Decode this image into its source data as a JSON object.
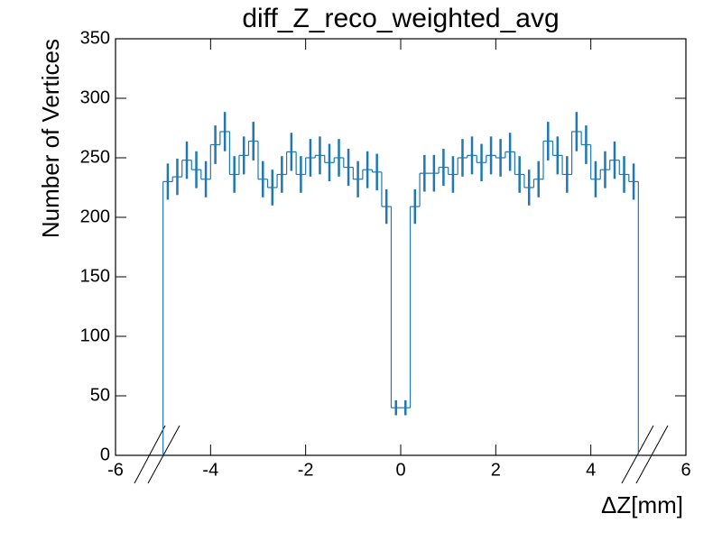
{
  "chart_data": {
    "type": "histogram",
    "title": "diff_Z_reco_weighted_avg",
    "x_label": "ΔZ[mm]",
    "y_label": "Number of Vertices",
    "color": "#1f77b4",
    "bins": [
      -5,
      -4.8,
      -4.6,
      -4.4,
      -4.2,
      -4,
      -3.8,
      -3.6,
      -3.4,
      -3.2,
      -3,
      -2.8,
      -2.6,
      -2.4,
      -2.2,
      -2,
      -1.8,
      -1.6,
      -1.4,
      -1.2,
      -1,
      -0.8,
      -0.6,
      -0.4,
      -0.2,
      0,
      0.2,
      0.4,
      0.6,
      0.8,
      1,
      1.2,
      1.4,
      1.6,
      1.8,
      2,
      2.2,
      2.4,
      2.6,
      2.8,
      3,
      3.2,
      3.4,
      3.6,
      3.8,
      4,
      4.2,
      4.4,
      4.6,
      4.8,
      5
    ],
    "values": [
      230,
      234,
      248,
      240,
      232,
      261,
      272,
      236,
      252,
      264,
      232,
      225,
      236,
      255,
      236,
      250,
      252,
      246,
      250,
      242,
      232,
      240,
      238,
      209,
      40,
      40,
      209,
      237,
      237,
      242,
      236,
      250,
      252,
      246,
      252,
      250,
      255,
      236,
      225,
      232,
      264,
      252,
      236,
      272,
      261,
      232,
      240,
      248,
      236,
      230
    ],
    "errors": [
      15.2,
      15.3,
      15.7,
      15.5,
      15.2,
      16.2,
      16.5,
      15.4,
      15.9,
      16.2,
      15.2,
      15,
      15.4,
      16,
      15.4,
      15.8,
      15.9,
      15.7,
      15.8,
      15.6,
      15.2,
      15.5,
      15.4,
      14.5,
      6.3,
      6.3,
      14.5,
      15.4,
      15.4,
      15.6,
      15.4,
      15.8,
      15.9,
      15.7,
      15.9,
      15.8,
      16,
      15.4,
      15,
      15.2,
      16.2,
      15.9,
      15.4,
      16.5,
      16.2,
      15.2,
      15.5,
      15.7,
      15.4,
      15.2
    ],
    "xlim": [
      -6,
      6
    ],
    "xticks": [
      -6,
      -4,
      -2,
      0,
      2,
      4,
      6
    ],
    "ylim": [
      0,
      350
    ],
    "yticks": [
      0,
      50,
      100,
      150,
      200,
      250,
      300,
      350
    ]
  }
}
